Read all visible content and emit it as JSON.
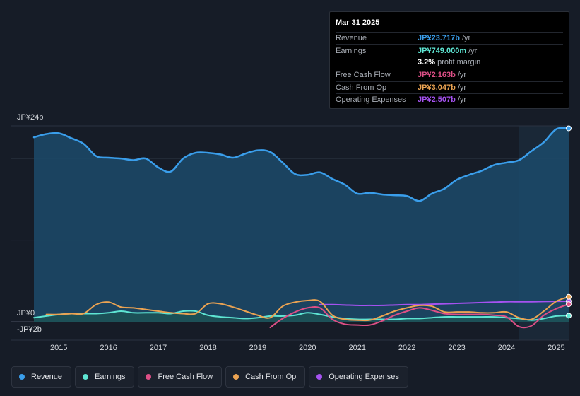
{
  "tooltip": {
    "date": "Mar 31 2025",
    "rows": [
      {
        "label": "Revenue",
        "value": "JP¥23.717b",
        "unit": "/yr",
        "color": "#3a9eeb"
      },
      {
        "label": "Earnings",
        "value": "JP¥749.000m",
        "unit": "/yr",
        "color": "#5ee5d3"
      },
      {
        "label": "",
        "value": "3.2%",
        "unit": "profit margin",
        "color": "#ffffff"
      },
      {
        "label": "Free Cash Flow",
        "value": "JP¥2.163b",
        "unit": "/yr",
        "color": "#dd4f86"
      },
      {
        "label": "Cash From Op",
        "value": "JP¥3.047b",
        "unit": "/yr",
        "color": "#eba352"
      },
      {
        "label": "Operating Expenses",
        "value": "JP¥2.507b",
        "unit": "/yr",
        "color": "#a552f0"
      }
    ]
  },
  "legend": [
    {
      "label": "Revenue",
      "color": "#3a9eeb"
    },
    {
      "label": "Earnings",
      "color": "#5ee5d3"
    },
    {
      "label": "Free Cash Flow",
      "color": "#dd4f86"
    },
    {
      "label": "Cash From Op",
      "color": "#eba352"
    },
    {
      "label": "Operating Expenses",
      "color": "#a552f0"
    }
  ],
  "chart_data": {
    "type": "line",
    "title": "",
    "xlabel": "",
    "ylabel": "",
    "x_ticks": [
      "2015",
      "2016",
      "2017",
      "2018",
      "2019",
      "2020",
      "2021",
      "2022",
      "2023",
      "2024",
      "2025"
    ],
    "y_tick_labels": [
      "JP¥24b",
      "JP¥0",
      "-JP¥2b"
    ],
    "ylim": [
      -2,
      24
    ],
    "xlim": [
      2014.5,
      2025.25
    ],
    "forecast_start": 2024.25,
    "series": [
      {
        "name": "Revenue",
        "color": "#3a9eeb",
        "fill": true,
        "x": [
          2014.5,
          2014.75,
          2015.0,
          2015.25,
          2015.5,
          2015.75,
          2016.0,
          2016.25,
          2016.5,
          2016.75,
          2017.0,
          2017.25,
          2017.5,
          2017.75,
          2018.0,
          2018.25,
          2018.5,
          2018.75,
          2019.0,
          2019.25,
          2019.5,
          2019.75,
          2020.0,
          2020.25,
          2020.5,
          2020.75,
          2021.0,
          2021.25,
          2021.5,
          2021.75,
          2022.0,
          2022.25,
          2022.5,
          2022.75,
          2023.0,
          2023.25,
          2023.5,
          2023.75,
          2024.0,
          2024.25,
          2024.5,
          2024.75,
          2025.0,
          2025.25
        ],
        "values": [
          22.6,
          23.0,
          23.1,
          22.5,
          21.8,
          20.3,
          20.1,
          20.0,
          19.8,
          20.0,
          18.9,
          18.4,
          20.0,
          20.7,
          20.7,
          20.5,
          20.1,
          20.6,
          21.0,
          20.8,
          19.5,
          18.1,
          18.0,
          18.3,
          17.5,
          16.8,
          15.7,
          15.8,
          15.6,
          15.5,
          15.4,
          14.8,
          15.7,
          16.3,
          17.4,
          18.0,
          18.5,
          19.2,
          19.5,
          19.8,
          20.9,
          22.0,
          23.6,
          23.7
        ]
      },
      {
        "name": "Earnings",
        "color": "#5ee5d3",
        "fill": true,
        "x": [
          2014.5,
          2014.75,
          2015.0,
          2015.25,
          2015.5,
          2015.75,
          2016.0,
          2016.25,
          2016.5,
          2016.75,
          2017.0,
          2017.25,
          2017.5,
          2017.75,
          2018.0,
          2018.25,
          2018.5,
          2018.75,
          2019.0,
          2019.25,
          2019.5,
          2019.75,
          2020.0,
          2020.25,
          2020.5,
          2020.75,
          2021.0,
          2021.25,
          2021.5,
          2021.75,
          2022.0,
          2022.25,
          2022.5,
          2022.75,
          2023.0,
          2023.25,
          2023.5,
          2023.75,
          2024.0,
          2024.25,
          2024.5,
          2024.75,
          2025.0,
          2025.25
        ],
        "values": [
          0.5,
          0.7,
          0.9,
          1.0,
          1.0,
          1.0,
          1.1,
          1.3,
          1.1,
          1.1,
          1.1,
          1.0,
          1.3,
          1.3,
          0.8,
          0.6,
          0.5,
          0.4,
          0.5,
          0.7,
          0.7,
          0.8,
          1.1,
          0.9,
          0.6,
          0.4,
          0.3,
          0.3,
          0.3,
          0.3,
          0.4,
          0.4,
          0.5,
          0.6,
          0.6,
          0.6,
          0.6,
          0.6,
          0.5,
          0.4,
          0.2,
          0.4,
          0.7,
          0.75
        ]
      },
      {
        "name": "Free Cash Flow",
        "color": "#dd4f86",
        "fill": false,
        "x": [
          2019.25,
          2019.5,
          2019.75,
          2020.0,
          2020.25,
          2020.5,
          2020.75,
          2021.0,
          2021.25,
          2021.5,
          2021.75,
          2022.0,
          2022.25,
          2022.5,
          2022.75,
          2023.0,
          2023.25,
          2023.5,
          2023.75,
          2024.0,
          2024.25,
          2024.5,
          2024.75,
          2025.0,
          2025.25
        ],
        "values": [
          -0.7,
          0.4,
          1.2,
          1.7,
          1.7,
          0.3,
          -0.3,
          -0.4,
          -0.4,
          0.1,
          0.8,
          1.3,
          1.7,
          1.4,
          1.0,
          0.9,
          0.9,
          0.9,
          0.8,
          0.6,
          -0.6,
          -0.5,
          0.8,
          1.6,
          2.16
        ]
      },
      {
        "name": "Cash From Op",
        "color": "#eba352",
        "fill": false,
        "x": [
          2014.75,
          2015.0,
          2015.25,
          2015.5,
          2015.75,
          2016.0,
          2016.25,
          2016.5,
          2016.75,
          2017.0,
          2017.25,
          2017.5,
          2017.75,
          2018.0,
          2018.25,
          2018.5,
          2018.75,
          2019.0,
          2019.25,
          2019.5,
          2019.75,
          2020.0,
          2020.25,
          2020.5,
          2020.75,
          2021.0,
          2021.25,
          2021.5,
          2021.75,
          2022.0,
          2022.25,
          2022.5,
          2022.75,
          2023.0,
          2023.25,
          2023.5,
          2023.75,
          2024.0,
          2024.25,
          2024.5,
          2024.75,
          2025.0,
          2025.25
        ],
        "values": [
          0.9,
          0.9,
          1.0,
          1.0,
          2.1,
          2.4,
          1.8,
          1.7,
          1.5,
          1.3,
          1.1,
          1.0,
          1.0,
          2.2,
          2.2,
          1.8,
          1.3,
          0.8,
          0.5,
          1.9,
          2.4,
          2.6,
          2.5,
          0.8,
          0.3,
          0.2,
          0.2,
          0.7,
          1.3,
          1.7,
          2.0,
          1.9,
          1.2,
          1.2,
          1.2,
          1.1,
          1.1,
          1.2,
          0.5,
          0.3,
          1.3,
          2.5,
          3.05
        ]
      },
      {
        "name": "Operating Expenses",
        "color": "#a552f0",
        "fill": false,
        "x": [
          2020.25,
          2020.5,
          2020.75,
          2021.0,
          2021.25,
          2021.5,
          2021.75,
          2022.0,
          2022.25,
          2022.5,
          2022.75,
          2023.0,
          2023.25,
          2023.5,
          2023.75,
          2024.0,
          2024.25,
          2024.5,
          2024.75,
          2025.0,
          2025.25
        ],
        "values": [
          2.1,
          2.1,
          2.05,
          2.0,
          2.0,
          2.0,
          2.05,
          2.1,
          2.1,
          2.15,
          2.2,
          2.25,
          2.3,
          2.35,
          2.4,
          2.45,
          2.45,
          2.45,
          2.48,
          2.5,
          2.51
        ]
      }
    ]
  }
}
